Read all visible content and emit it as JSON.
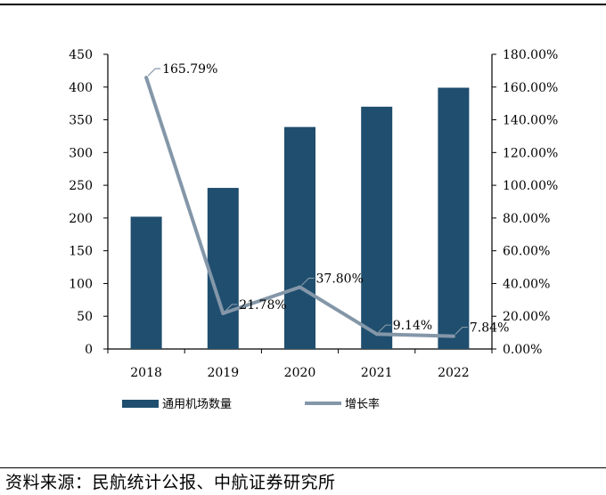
{
  "chart_data": {
    "type": "bar+line",
    "categories": [
      "2018",
      "2019",
      "2020",
      "2021",
      "2022"
    ],
    "series": [
      {
        "name": "通用机场数量",
        "type": "bar",
        "axis": "left",
        "color": "#1f4e6e",
        "values": [
          202,
          246,
          339,
          370,
          399
        ]
      },
      {
        "name": "增长率",
        "type": "line",
        "axis": "right",
        "color": "#8497a9",
        "values": [
          165.79,
          21.78,
          37.8,
          9.14,
          7.84
        ],
        "labels": [
          "165.79%",
          "21.78%",
          "37.80%",
          "9.14%",
          "7.84%"
        ]
      }
    ],
    "y_left": {
      "min": 0,
      "max": 450,
      "ticks": [
        "0",
        "50",
        "100",
        "150",
        "200",
        "250",
        "300",
        "350",
        "400",
        "450"
      ]
    },
    "y_right": {
      "min": 0,
      "max": 180,
      "ticks": [
        "0.00%",
        "20.00%",
        "40.00%",
        "60.00%",
        "80.00%",
        "100.00%",
        "120.00%",
        "140.00%",
        "160.00%",
        "180.00%"
      ]
    },
    "legend": [
      {
        "label": "通用机场数量",
        "kind": "bar",
        "color": "#1f4e6e"
      },
      {
        "label": "增长率",
        "kind": "line",
        "color": "#8497a9"
      }
    ],
    "grid": false,
    "legend_position": "bottom"
  },
  "source": "资料来源：民航统计公报、中航证券研究所"
}
